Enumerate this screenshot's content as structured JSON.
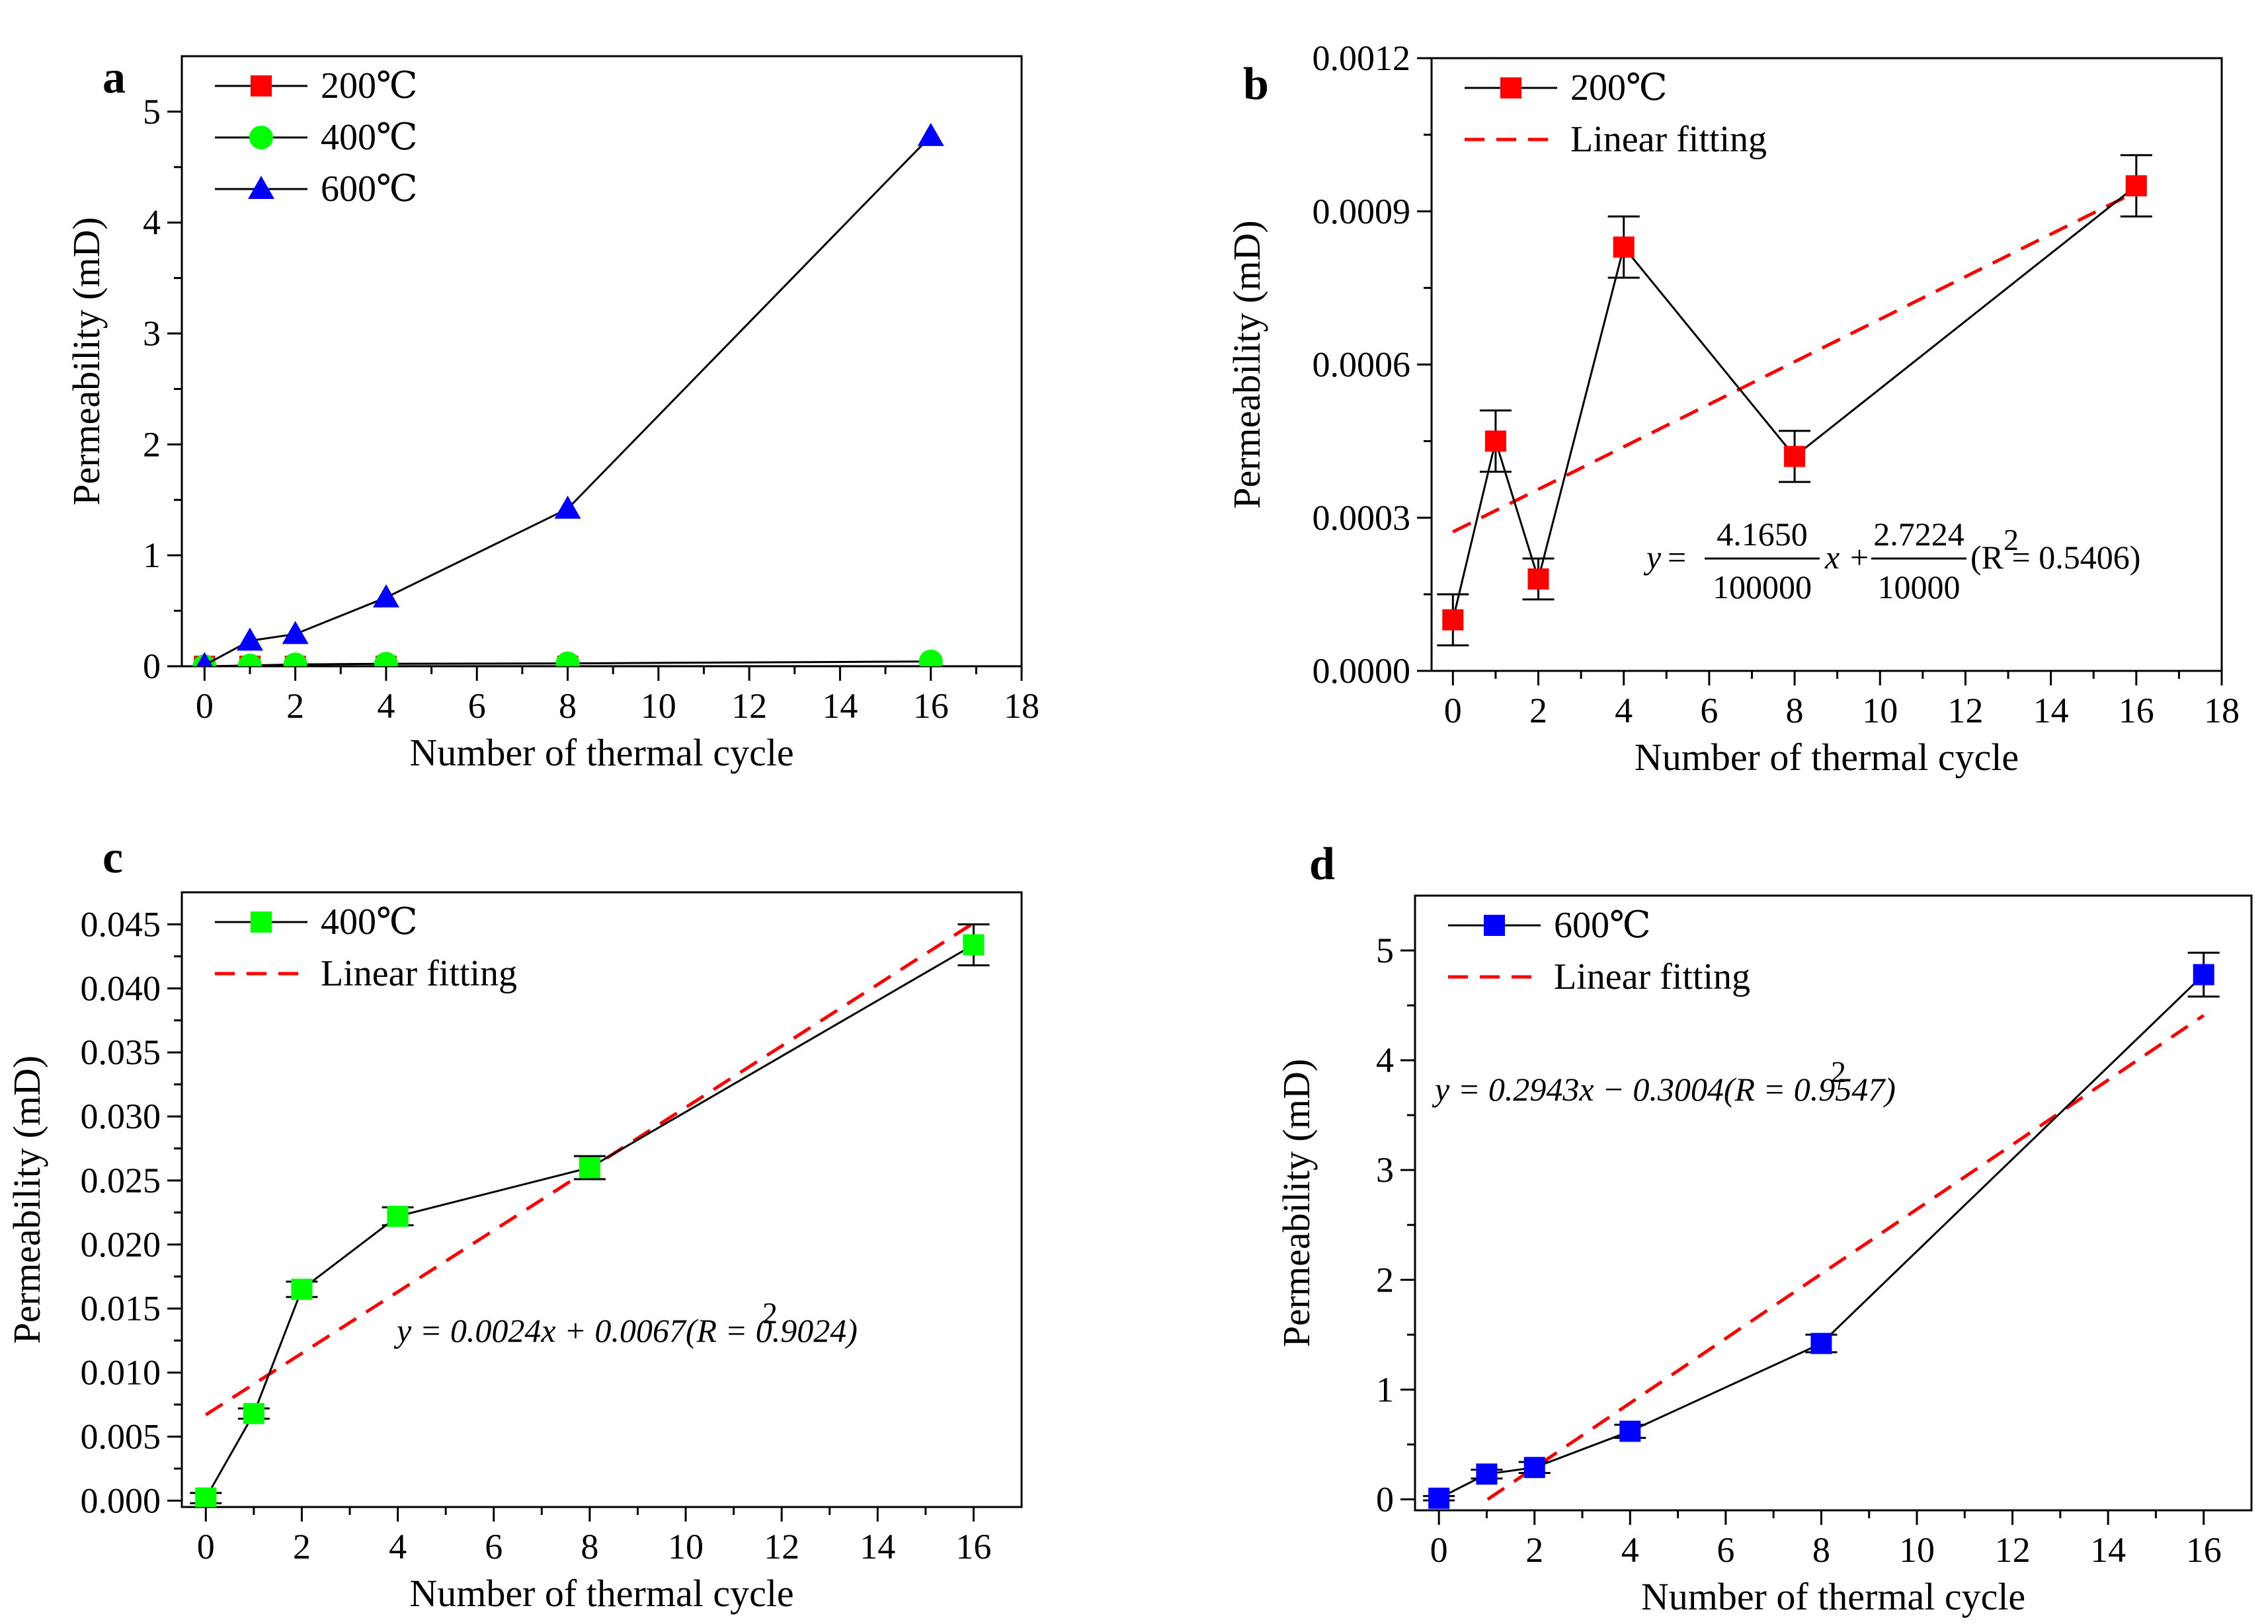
{
  "chart_data": [
    {
      "id": "a",
      "type": "line",
      "panel_label": "a",
      "xlabel": "Number of thermal cycle",
      "ylabel": "Permeability (mD)",
      "xlim": [
        -0.5,
        18
      ],
      "ylim": [
        0,
        5.5
      ],
      "xticks": [
        "0",
        "2",
        "4",
        "6",
        "8",
        "10",
        "12",
        "14",
        "16",
        "18"
      ],
      "yticks": [
        "0",
        "1",
        "2",
        "3",
        "4",
        "5"
      ],
      "legend_position": "top-left",
      "series": [
        {
          "name": "200℃",
          "color": "#ff0000",
          "marker": "square",
          "x": [
            0,
            1,
            2,
            4,
            8,
            16
          ],
          "values": [
            0.0001,
            0.00045,
            0.00018,
            0.00083,
            0.00042,
            0.00095
          ]
        },
        {
          "name": "400℃",
          "color": "#00ff00",
          "marker": "circle",
          "x": [
            0,
            1,
            2,
            4,
            8,
            16
          ],
          "values": [
            0.0002,
            0.0068,
            0.0165,
            0.0222,
            0.026,
            0.0434
          ]
        },
        {
          "name": "600℃",
          "color": "#0000ff",
          "marker": "triangle",
          "x": [
            0,
            1,
            2,
            4,
            8,
            16
          ],
          "values": [
            0.01,
            0.23,
            0.29,
            0.62,
            1.42,
            4.78
          ]
        }
      ]
    },
    {
      "id": "b",
      "type": "line",
      "panel_label": "b",
      "xlabel": "Number of thermal cycle",
      "ylabel": "Permeability (mD)",
      "xlim": [
        -0.5,
        18
      ],
      "ylim": [
        0,
        0.0012
      ],
      "xticks": [
        "0",
        "2",
        "4",
        "6",
        "8",
        "10",
        "12",
        "14",
        "16",
        "18"
      ],
      "yticks": [
        "0.0000",
        "0.0003",
        "0.0006",
        "0.0009",
        "0.0012"
      ],
      "legend_position": "top-left",
      "series": [
        {
          "name": "200℃",
          "color": "#ff0000",
          "marker": "square",
          "x": [
            0,
            1,
            2,
            4,
            8,
            16
          ],
          "values": [
            0.0001,
            0.00045,
            0.00018,
            0.00083,
            0.00042,
            0.00095
          ],
          "errors": [
            5e-05,
            6e-05,
            4e-05,
            6e-05,
            5e-05,
            6e-05
          ]
        }
      ],
      "fit": {
        "name": "Linear fitting",
        "slope": 4.165e-05,
        "intercept": 0.00027224,
        "color": "#ff0000"
      },
      "equation": {
        "y": "y",
        "num1": "4.1650",
        "den1": "100000",
        "mid": "x +",
        "num2": "2.7224",
        "den2": "10000",
        "r2": "(R  = 0.5406)",
        "sup": "2"
      }
    },
    {
      "id": "c",
      "type": "line",
      "panel_label": "c",
      "xlabel": "Number of thermal cycle",
      "ylabel": "Permeability (mD)",
      "xlim": [
        -0.5,
        17
      ],
      "ylim": [
        -0.0005,
        0.0475
      ],
      "xticks": [
        "0",
        "2",
        "4",
        "6",
        "8",
        "10",
        "12",
        "14",
        "16"
      ],
      "yticks": [
        "0.000",
        "0.005",
        "0.010",
        "0.015",
        "0.020",
        "0.025",
        "0.030",
        "0.035",
        "0.040",
        "0.045"
      ],
      "legend_position": "top-left",
      "series": [
        {
          "name": "400℃",
          "color": "#00ff00",
          "marker": "square",
          "x": [
            0,
            1,
            2,
            4,
            8,
            16
          ],
          "values": [
            0.0002,
            0.0068,
            0.0165,
            0.0222,
            0.026,
            0.0434
          ],
          "errors": [
            0.0004,
            0.0004,
            0.0006,
            0.0007,
            0.0009,
            0.0016
          ]
        }
      ],
      "fit": {
        "name": "Linear fitting",
        "slope": 0.0024,
        "intercept": 0.0067,
        "color": "#ff0000"
      },
      "equation": {
        "text": "y = 0.0024x + 0.0067(R  = 0.9024)",
        "sup": "2"
      }
    },
    {
      "id": "d",
      "type": "line",
      "panel_label": "d",
      "xlabel": "Number of thermal cycle",
      "ylabel": "Permeability (mD)",
      "xlim": [
        -0.5,
        17
      ],
      "ylim": [
        -0.1,
        5.5
      ],
      "xticks": [
        "0",
        "2",
        "4",
        "6",
        "8",
        "10",
        "12",
        "14",
        "16"
      ],
      "yticks": [
        "0",
        "1",
        "2",
        "3",
        "4",
        "5"
      ],
      "legend_position": "top-left",
      "series": [
        {
          "name": "600℃",
          "color": "#0000ff",
          "marker": "square",
          "x": [
            0,
            1,
            2,
            4,
            8,
            16
          ],
          "values": [
            0.01,
            0.23,
            0.29,
            0.62,
            1.42,
            4.78
          ],
          "errors": [
            0.02,
            0.04,
            0.05,
            0.06,
            0.08,
            0.2
          ]
        }
      ],
      "fit": {
        "name": "Linear fitting",
        "slope": 0.2943,
        "intercept": -0.3004,
        "color": "#ff0000"
      },
      "equation": {
        "text": "y = 0.2943x − 0.3004(R  = 0.9547)",
        "sup": "2"
      }
    }
  ]
}
